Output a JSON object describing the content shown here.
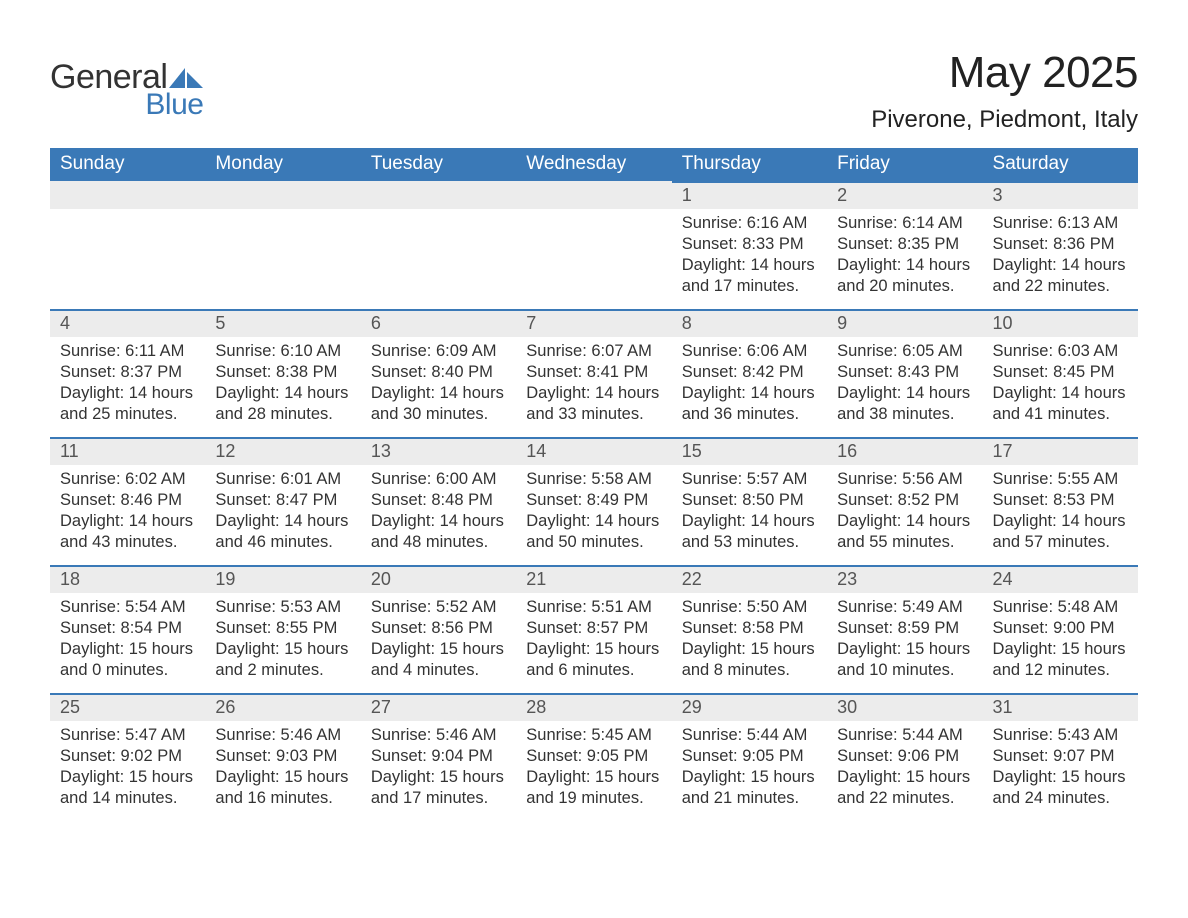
{
  "brand": {
    "part1": "General",
    "part2": "Blue",
    "accent_color": "#3a79b7"
  },
  "title": "May 2025",
  "location": "Piverone, Piedmont, Italy",
  "colors": {
    "header_bg": "#3a79b7",
    "header_text": "#ffffff",
    "daynum_bg": "#ececec",
    "row_border": "#3a79b7",
    "body_text": "#333333",
    "page_bg": "#ffffff"
  },
  "fonts": {
    "title_size_pt": 33,
    "location_size_pt": 18,
    "header_size_pt": 14,
    "body_size_pt": 12
  },
  "weekdays": [
    "Sunday",
    "Monday",
    "Tuesday",
    "Wednesday",
    "Thursday",
    "Friday",
    "Saturday"
  ],
  "weeks": [
    [
      null,
      null,
      null,
      null,
      {
        "n": "1",
        "sunrise": "Sunrise: 6:16 AM",
        "sunset": "Sunset: 8:33 PM",
        "daylight": "Daylight: 14 hours and 17 minutes."
      },
      {
        "n": "2",
        "sunrise": "Sunrise: 6:14 AM",
        "sunset": "Sunset: 8:35 PM",
        "daylight": "Daylight: 14 hours and 20 minutes."
      },
      {
        "n": "3",
        "sunrise": "Sunrise: 6:13 AM",
        "sunset": "Sunset: 8:36 PM",
        "daylight": "Daylight: 14 hours and 22 minutes."
      }
    ],
    [
      {
        "n": "4",
        "sunrise": "Sunrise: 6:11 AM",
        "sunset": "Sunset: 8:37 PM",
        "daylight": "Daylight: 14 hours and 25 minutes."
      },
      {
        "n": "5",
        "sunrise": "Sunrise: 6:10 AM",
        "sunset": "Sunset: 8:38 PM",
        "daylight": "Daylight: 14 hours and 28 minutes."
      },
      {
        "n": "6",
        "sunrise": "Sunrise: 6:09 AM",
        "sunset": "Sunset: 8:40 PM",
        "daylight": "Daylight: 14 hours and 30 minutes."
      },
      {
        "n": "7",
        "sunrise": "Sunrise: 6:07 AM",
        "sunset": "Sunset: 8:41 PM",
        "daylight": "Daylight: 14 hours and 33 minutes."
      },
      {
        "n": "8",
        "sunrise": "Sunrise: 6:06 AM",
        "sunset": "Sunset: 8:42 PM",
        "daylight": "Daylight: 14 hours and 36 minutes."
      },
      {
        "n": "9",
        "sunrise": "Sunrise: 6:05 AM",
        "sunset": "Sunset: 8:43 PM",
        "daylight": "Daylight: 14 hours and 38 minutes."
      },
      {
        "n": "10",
        "sunrise": "Sunrise: 6:03 AM",
        "sunset": "Sunset: 8:45 PM",
        "daylight": "Daylight: 14 hours and 41 minutes."
      }
    ],
    [
      {
        "n": "11",
        "sunrise": "Sunrise: 6:02 AM",
        "sunset": "Sunset: 8:46 PM",
        "daylight": "Daylight: 14 hours and 43 minutes."
      },
      {
        "n": "12",
        "sunrise": "Sunrise: 6:01 AM",
        "sunset": "Sunset: 8:47 PM",
        "daylight": "Daylight: 14 hours and 46 minutes."
      },
      {
        "n": "13",
        "sunrise": "Sunrise: 6:00 AM",
        "sunset": "Sunset: 8:48 PM",
        "daylight": "Daylight: 14 hours and 48 minutes."
      },
      {
        "n": "14",
        "sunrise": "Sunrise: 5:58 AM",
        "sunset": "Sunset: 8:49 PM",
        "daylight": "Daylight: 14 hours and 50 minutes."
      },
      {
        "n": "15",
        "sunrise": "Sunrise: 5:57 AM",
        "sunset": "Sunset: 8:50 PM",
        "daylight": "Daylight: 14 hours and 53 minutes."
      },
      {
        "n": "16",
        "sunrise": "Sunrise: 5:56 AM",
        "sunset": "Sunset: 8:52 PM",
        "daylight": "Daylight: 14 hours and 55 minutes."
      },
      {
        "n": "17",
        "sunrise": "Sunrise: 5:55 AM",
        "sunset": "Sunset: 8:53 PM",
        "daylight": "Daylight: 14 hours and 57 minutes."
      }
    ],
    [
      {
        "n": "18",
        "sunrise": "Sunrise: 5:54 AM",
        "sunset": "Sunset: 8:54 PM",
        "daylight": "Daylight: 15 hours and 0 minutes."
      },
      {
        "n": "19",
        "sunrise": "Sunrise: 5:53 AM",
        "sunset": "Sunset: 8:55 PM",
        "daylight": "Daylight: 15 hours and 2 minutes."
      },
      {
        "n": "20",
        "sunrise": "Sunrise: 5:52 AM",
        "sunset": "Sunset: 8:56 PM",
        "daylight": "Daylight: 15 hours and 4 minutes."
      },
      {
        "n": "21",
        "sunrise": "Sunrise: 5:51 AM",
        "sunset": "Sunset: 8:57 PM",
        "daylight": "Daylight: 15 hours and 6 minutes."
      },
      {
        "n": "22",
        "sunrise": "Sunrise: 5:50 AM",
        "sunset": "Sunset: 8:58 PM",
        "daylight": "Daylight: 15 hours and 8 minutes."
      },
      {
        "n": "23",
        "sunrise": "Sunrise: 5:49 AM",
        "sunset": "Sunset: 8:59 PM",
        "daylight": "Daylight: 15 hours and 10 minutes."
      },
      {
        "n": "24",
        "sunrise": "Sunrise: 5:48 AM",
        "sunset": "Sunset: 9:00 PM",
        "daylight": "Daylight: 15 hours and 12 minutes."
      }
    ],
    [
      {
        "n": "25",
        "sunrise": "Sunrise: 5:47 AM",
        "sunset": "Sunset: 9:02 PM",
        "daylight": "Daylight: 15 hours and 14 minutes."
      },
      {
        "n": "26",
        "sunrise": "Sunrise: 5:46 AM",
        "sunset": "Sunset: 9:03 PM",
        "daylight": "Daylight: 15 hours and 16 minutes."
      },
      {
        "n": "27",
        "sunrise": "Sunrise: 5:46 AM",
        "sunset": "Sunset: 9:04 PM",
        "daylight": "Daylight: 15 hours and 17 minutes."
      },
      {
        "n": "28",
        "sunrise": "Sunrise: 5:45 AM",
        "sunset": "Sunset: 9:05 PM",
        "daylight": "Daylight: 15 hours and 19 minutes."
      },
      {
        "n": "29",
        "sunrise": "Sunrise: 5:44 AM",
        "sunset": "Sunset: 9:05 PM",
        "daylight": "Daylight: 15 hours and 21 minutes."
      },
      {
        "n": "30",
        "sunrise": "Sunrise: 5:44 AM",
        "sunset": "Sunset: 9:06 PM",
        "daylight": "Daylight: 15 hours and 22 minutes."
      },
      {
        "n": "31",
        "sunrise": "Sunrise: 5:43 AM",
        "sunset": "Sunset: 9:07 PM",
        "daylight": "Daylight: 15 hours and 24 minutes."
      }
    ]
  ]
}
